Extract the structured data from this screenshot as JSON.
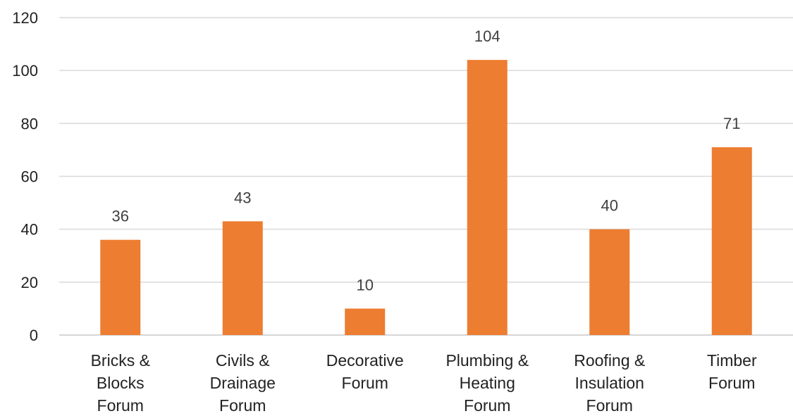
{
  "chart_data": {
    "type": "bar",
    "title": "",
    "xlabel": "",
    "ylabel": "",
    "categories": [
      [
        "Bricks &",
        "Blocks",
        "Forum"
      ],
      [
        "Civils &",
        "Drainage",
        "Forum"
      ],
      [
        "Decorative",
        "Forum"
      ],
      [
        "Plumbing &",
        "Heating",
        "Forum"
      ],
      [
        "Roofing &",
        "Insulation",
        "Forum"
      ],
      [
        "Timber",
        "Forum"
      ]
    ],
    "values": [
      36,
      43,
      10,
      104,
      40,
      71
    ],
    "data_labels": [
      "36",
      "43",
      "10",
      "104",
      "40",
      "71"
    ],
    "ylim": [
      0,
      120
    ],
    "yticks": [
      0,
      20,
      40,
      60,
      80,
      100,
      120
    ],
    "ytick_labels": [
      "0",
      "20",
      "40",
      "60",
      "80",
      "100",
      "120"
    ],
    "grid": true,
    "legend": "none",
    "bar_color": "#ED7D31"
  }
}
